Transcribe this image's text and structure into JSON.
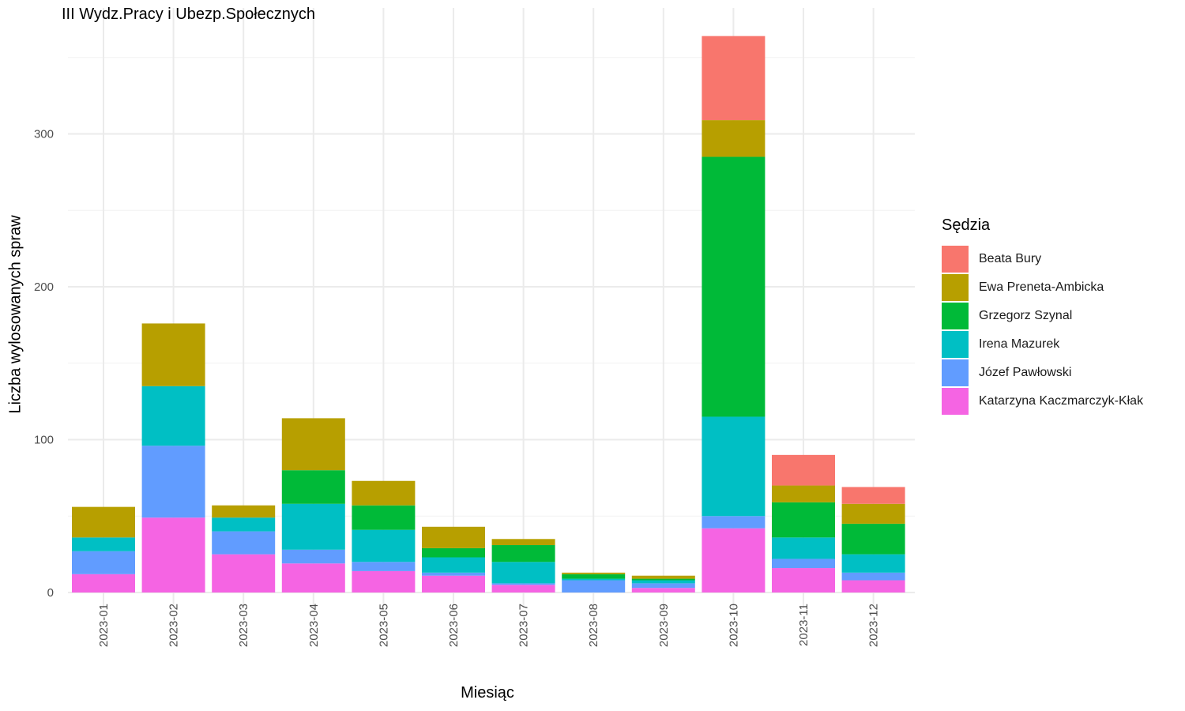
{
  "chart_data": {
    "type": "bar",
    "stacked": true,
    "title": "III Wydz.Pracy i Ubezp.Społecznych",
    "xlabel": "Miesiąc",
    "ylabel": "Liczba wylosowanych spraw",
    "legend_title": "Sędzia",
    "legend_position": "right",
    "grid": true,
    "ylim": [
      0,
      370
    ],
    "yticks": [
      0,
      100,
      200,
      300
    ],
    "categories": [
      "2023-01",
      "2023-02",
      "2023-03",
      "2023-04",
      "2023-05",
      "2023-06",
      "2023-07",
      "2023-08",
      "2023-09",
      "2023-10",
      "2023-11",
      "2023-12"
    ],
    "series": [
      {
        "name": "Katarzyna Kaczmarczyk-Kłak",
        "color": "#F564E3",
        "values": [
          12,
          49,
          25,
          19,
          14,
          11,
          5,
          0,
          3,
          42,
          16,
          8
        ]
      },
      {
        "name": "Józef Pawłowski",
        "color": "#619CFF",
        "values": [
          15,
          47,
          15,
          9,
          6,
          2,
          1,
          8,
          3,
          8,
          6,
          5
        ]
      },
      {
        "name": "Irena Mazurek",
        "color": "#00BFC4",
        "values": [
          9,
          39,
          9,
          30,
          21,
          10,
          14,
          1,
          2,
          65,
          14,
          12
        ]
      },
      {
        "name": "Grzegorz Szynal",
        "color": "#00BA38",
        "values": [
          0,
          0,
          0,
          22,
          16,
          6,
          11,
          3,
          1,
          170,
          23,
          20
        ]
      },
      {
        "name": "Ewa Preneta-Ambicka",
        "color": "#B79F00",
        "values": [
          20,
          41,
          8,
          34,
          16,
          14,
          4,
          1,
          2,
          24,
          11,
          13
        ]
      },
      {
        "name": "Beata Bury",
        "color": "#F8766D",
        "values": [
          0,
          0,
          0,
          0,
          0,
          0,
          0,
          0,
          0,
          55,
          20,
          11
        ]
      }
    ],
    "legend_order": [
      "Beata Bury",
      "Ewa Preneta-Ambicka",
      "Grzegorz Szynal",
      "Irena Mazurek",
      "Józef Pawłowski",
      "Katarzyna Kaczmarczyk-Kłak"
    ]
  }
}
